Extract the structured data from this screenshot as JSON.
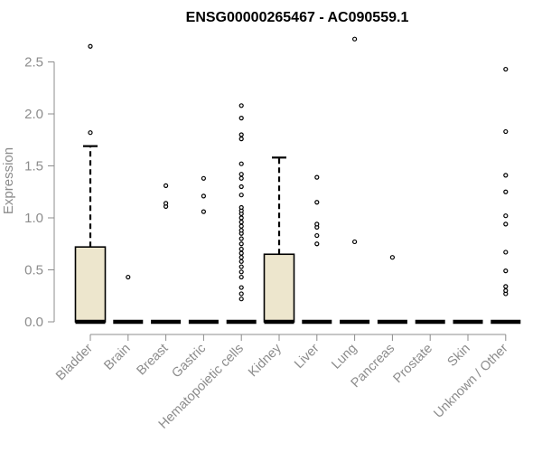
{
  "chart_data": {
    "type": "boxplot",
    "title": "ENSG00000265467 - AC090559.1",
    "ylabel": "Expression",
    "ylim": [
      0,
      2.8
    ],
    "yticks": [
      0.0,
      0.5,
      1.0,
      1.5,
      2.0,
      2.5
    ],
    "ytick_labels": [
      "0.0",
      "0.5",
      "1.0",
      "1.5",
      "2.0",
      "2.5"
    ],
    "box_color": "#ede6cd",
    "categories": [
      "Bladder",
      "Brain",
      "Breast",
      "Gastric",
      "Hematopoietic cells",
      "Kidney",
      "Liver",
      "Lung",
      "Pancreas",
      "Prostate",
      "Skin",
      "Unknown / Other"
    ],
    "boxes": [
      {
        "q1": 0,
        "median": 0,
        "q3": 0.72,
        "whisker_low": 0,
        "whisker_high": 1.69,
        "outliers": [
          1.82,
          2.65
        ]
      },
      {
        "q1": 0,
        "median": 0,
        "q3": 0,
        "whisker_low": 0,
        "whisker_high": 0,
        "outliers": [
          0.43
        ]
      },
      {
        "q1": 0,
        "median": 0,
        "q3": 0,
        "whisker_low": 0,
        "whisker_high": 0,
        "outliers": [
          1.11,
          1.14,
          1.31
        ]
      },
      {
        "q1": 0,
        "median": 0,
        "q3": 0,
        "whisker_low": 0,
        "whisker_high": 0,
        "outliers": [
          1.06,
          1.21,
          1.38
        ]
      },
      {
        "q1": 0,
        "median": 0,
        "q3": 0,
        "whisker_low": 0,
        "whisker_high": 0,
        "outliers": [
          0.22,
          0.27,
          0.33,
          0.43,
          0.48,
          0.53,
          0.58,
          0.62,
          0.66,
          0.7,
          0.75,
          0.8,
          0.85,
          0.88,
          0.92,
          0.96,
          1.0,
          1.04,
          1.07,
          1.1,
          1.22,
          1.3,
          1.38,
          1.42,
          1.52,
          1.76,
          1.8,
          1.96,
          2.08
        ]
      },
      {
        "q1": 0,
        "median": 0,
        "q3": 0.65,
        "whisker_low": 0,
        "whisker_high": 1.58,
        "outliers": []
      },
      {
        "q1": 0,
        "median": 0,
        "q3": 0,
        "whisker_low": 0,
        "whisker_high": 0,
        "outliers": [
          0.75,
          0.83,
          0.91,
          0.94,
          1.15,
          1.39
        ]
      },
      {
        "q1": 0,
        "median": 0,
        "q3": 0,
        "whisker_low": 0,
        "whisker_high": 0,
        "outliers": [
          0.77,
          2.72
        ]
      },
      {
        "q1": 0,
        "median": 0,
        "q3": 0,
        "whisker_low": 0,
        "whisker_high": 0,
        "outliers": [
          0.62
        ]
      },
      {
        "q1": 0,
        "median": 0,
        "q3": 0,
        "whisker_low": 0,
        "whisker_high": 0,
        "outliers": []
      },
      {
        "q1": 0,
        "median": 0,
        "q3": 0,
        "whisker_low": 0,
        "whisker_high": 0,
        "outliers": []
      },
      {
        "q1": 0,
        "median": 0,
        "q3": 0,
        "whisker_low": 0,
        "whisker_high": 0,
        "outliers": [
          0.27,
          0.3,
          0.34,
          0.49,
          0.67,
          0.94,
          1.02,
          1.25,
          1.41,
          1.83,
          2.43
        ]
      }
    ]
  }
}
